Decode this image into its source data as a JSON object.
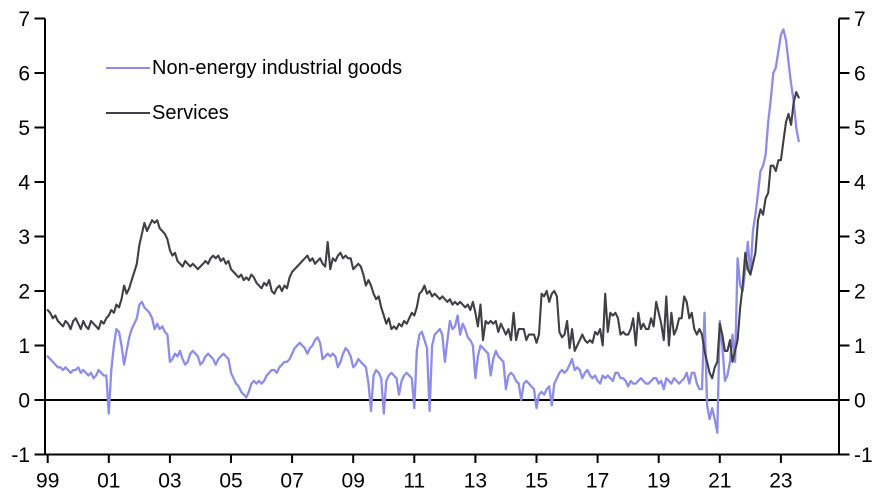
{
  "chart_data": {
    "type": "line",
    "title": "",
    "xlabel": "",
    "ylabel": "",
    "x_axis": {
      "start_year": 1999,
      "points_per_year": 12,
      "tick_years": [
        1999,
        2001,
        2003,
        2005,
        2007,
        2009,
        2011,
        2013,
        2015,
        2017,
        2019,
        2021,
        2023
      ],
      "tick_labels": [
        "99",
        "01",
        "03",
        "05",
        "07",
        "09",
        "11",
        "13",
        "15",
        "17",
        "19",
        "21",
        "23"
      ]
    },
    "y_axis": {
      "min": -1,
      "max": 7,
      "ticks": [
        -1,
        0,
        1,
        2,
        3,
        4,
        5,
        6,
        7
      ],
      "tick_labels": [
        "-1",
        "0",
        "1",
        "2",
        "3",
        "4",
        "5",
        "6",
        "7"
      ],
      "dual_axis": true,
      "zero_line": true,
      "grid": false
    },
    "legend_position": "top-left",
    "series": [
      {
        "name": "Non-energy industrial goods",
        "color": "#8d8de8",
        "values": [
          0.8,
          0.75,
          0.7,
          0.65,
          0.6,
          0.6,
          0.55,
          0.6,
          0.55,
          0.5,
          0.55,
          0.55,
          0.6,
          0.5,
          0.55,
          0.5,
          0.45,
          0.5,
          0.4,
          0.45,
          0.55,
          0.5,
          0.45,
          0.45,
          -0.25,
          0.55,
          1.0,
          1.3,
          1.25,
          1.0,
          0.65,
          0.9,
          1.15,
          1.3,
          1.4,
          1.5,
          1.75,
          1.8,
          1.7,
          1.65,
          1.6,
          1.5,
          1.3,
          1.4,
          1.3,
          1.35,
          1.25,
          1.2,
          0.7,
          0.75,
          0.85,
          0.8,
          0.9,
          0.75,
          0.65,
          0.7,
          0.85,
          0.9,
          0.85,
          0.8,
          0.65,
          0.7,
          0.8,
          0.85,
          0.8,
          0.75,
          0.65,
          0.75,
          0.8,
          0.85,
          0.8,
          0.75,
          0.5,
          0.4,
          0.3,
          0.25,
          0.15,
          0.1,
          0.05,
          0.15,
          0.3,
          0.35,
          0.3,
          0.35,
          0.3,
          0.35,
          0.45,
          0.5,
          0.55,
          0.55,
          0.5,
          0.6,
          0.65,
          0.7,
          0.7,
          0.75,
          0.85,
          0.95,
          1.0,
          1.05,
          1.0,
          0.95,
          0.85,
          0.95,
          1.0,
          1.1,
          1.15,
          1.05,
          0.75,
          0.8,
          0.85,
          0.8,
          0.85,
          0.8,
          0.6,
          0.7,
          0.85,
          0.95,
          0.9,
          0.8,
          0.6,
          0.65,
          0.75,
          0.7,
          0.65,
          0.6,
          0.3,
          -0.2,
          0.45,
          0.55,
          0.5,
          0.4,
          -0.25,
          0.35,
          0.45,
          0.5,
          0.45,
          0.4,
          0.1,
          0.35,
          0.45,
          0.5,
          0.45,
          0.4,
          -0.15,
          0.9,
          1.2,
          1.25,
          1.1,
          0.95,
          -0.2,
          1.0,
          1.2,
          1.25,
          1.3,
          1.2,
          0.7,
          1.1,
          1.45,
          1.3,
          1.35,
          1.55,
          1.2,
          1.4,
          1.3,
          1.15,
          1.1,
          1.0,
          0.4,
          0.8,
          1.0,
          0.95,
          0.9,
          0.85,
          0.45,
          0.75,
          0.9,
          0.8,
          0.75,
          0.7,
          0.2,
          0.45,
          0.5,
          0.45,
          0.35,
          0.3,
          0.0,
          0.3,
          0.35,
          0.3,
          0.25,
          0.2,
          -0.15,
          0.1,
          0.15,
          0.1,
          0.2,
          0.25,
          -0.1,
          0.3,
          0.4,
          0.5,
          0.55,
          0.5,
          0.55,
          0.65,
          0.75,
          0.55,
          0.6,
          0.55,
          0.4,
          0.5,
          0.55,
          0.45,
          0.4,
          0.45,
          0.35,
          0.3,
          0.45,
          0.4,
          0.45,
          0.4,
          0.35,
          0.5,
          0.5,
          0.4,
          0.4,
          0.35,
          0.25,
          0.35,
          0.3,
          0.3,
          0.35,
          0.4,
          0.35,
          0.3,
          0.3,
          0.35,
          0.4,
          0.4,
          0.3,
          0.35,
          0.2,
          0.4,
          0.35,
          0.3,
          0.4,
          0.35,
          0.3,
          0.35,
          0.4,
          0.5,
          0.3,
          0.5,
          0.5,
          0.3,
          0.2,
          0.2,
          1.6,
          -0.1,
          -0.35,
          -0.15,
          -0.35,
          -0.6,
          1.45,
          1.0,
          0.35,
          0.45,
          0.7,
          1.2,
          0.7,
          2.6,
          2.1,
          2.0,
          2.4,
          2.9,
          2.3,
          3.1,
          3.4,
          3.8,
          4.2,
          4.3,
          4.5,
          5.1,
          5.5,
          6.0,
          6.1,
          6.4,
          6.7,
          6.8,
          6.6,
          6.2,
          5.8,
          5.5,
          5.0,
          4.75
        ]
      },
      {
        "name": "Services",
        "color": "#3f3f45",
        "values": [
          1.65,
          1.6,
          1.5,
          1.55,
          1.45,
          1.4,
          1.35,
          1.45,
          1.4,
          1.3,
          1.45,
          1.5,
          1.4,
          1.3,
          1.45,
          1.35,
          1.3,
          1.45,
          1.4,
          1.35,
          1.3,
          1.45,
          1.4,
          1.5,
          1.55,
          1.65,
          1.6,
          1.75,
          1.7,
          1.85,
          2.1,
          1.95,
          2.05,
          2.2,
          2.35,
          2.5,
          2.85,
          3.05,
          3.25,
          3.1,
          3.2,
          3.3,
          3.25,
          3.3,
          3.15,
          3.1,
          3.05,
          2.95,
          2.75,
          2.65,
          2.7,
          2.55,
          2.5,
          2.45,
          2.55,
          2.5,
          2.45,
          2.5,
          2.45,
          2.4,
          2.45,
          2.5,
          2.55,
          2.5,
          2.6,
          2.65,
          2.6,
          2.65,
          2.55,
          2.6,
          2.5,
          2.55,
          2.4,
          2.35,
          2.3,
          2.25,
          2.3,
          2.2,
          2.25,
          2.2,
          2.3,
          2.25,
          2.15,
          2.1,
          2.05,
          2.15,
          2.1,
          2.2,
          2.0,
          1.95,
          2.05,
          2.1,
          2.0,
          2.1,
          2.05,
          2.25,
          2.35,
          2.4,
          2.45,
          2.5,
          2.55,
          2.6,
          2.65,
          2.55,
          2.6,
          2.5,
          2.55,
          2.6,
          2.5,
          2.45,
          2.9,
          2.4,
          2.6,
          2.55,
          2.65,
          2.7,
          2.6,
          2.65,
          2.6,
          2.6,
          2.4,
          2.45,
          2.5,
          2.45,
          2.3,
          2.1,
          2.2,
          2.1,
          1.95,
          1.85,
          1.9,
          1.7,
          1.55,
          1.4,
          1.5,
          1.3,
          1.35,
          1.3,
          1.4,
          1.35,
          1.45,
          1.4,
          1.5,
          1.6,
          1.55,
          1.7,
          1.95,
          2.0,
          2.1,
          1.95,
          2.0,
          1.9,
          1.95,
          1.9,
          1.85,
          1.9,
          1.85,
          1.8,
          1.85,
          1.75,
          1.8,
          1.75,
          1.8,
          1.75,
          1.7,
          1.75,
          1.65,
          1.8,
          1.6,
          1.35,
          1.75,
          1.1,
          1.45,
          1.4,
          1.45,
          1.4,
          1.45,
          1.25,
          1.4,
          1.3,
          1.2,
          1.3,
          1.1,
          1.6,
          1.1,
          1.3,
          1.3,
          1.3,
          1.1,
          1.2,
          1.2,
          1.2,
          1.05,
          1.2,
          1.95,
          1.9,
          2.0,
          1.8,
          1.95,
          2.0,
          1.9,
          1.25,
          1.15,
          1.2,
          1.45,
          0.95,
          1.3,
          0.9,
          1.0,
          1.1,
          1.2,
          1.1,
          1.05,
          1.1,
          1.05,
          1.25,
          1.2,
          1.3,
          1.0,
          1.95,
          1.25,
          1.6,
          1.55,
          1.6,
          1.5,
          1.2,
          1.25,
          1.2,
          1.2,
          1.3,
          1.5,
          1.0,
          1.6,
          1.3,
          1.4,
          1.3,
          1.3,
          1.5,
          1.35,
          1.8,
          1.6,
          1.4,
          1.1,
          1.9,
          1.0,
          1.6,
          1.2,
          1.3,
          1.5,
          1.5,
          1.9,
          1.8,
          1.5,
          1.6,
          1.3,
          1.2,
          1.3,
          1.2,
          0.9,
          0.7,
          0.5,
          0.4,
          0.6,
          0.7,
          1.4,
          1.2,
          0.9,
          0.9,
          1.1,
          0.7,
          0.9,
          1.1,
          1.7,
          2.1,
          2.7,
          2.4,
          2.3,
          2.5,
          2.7,
          3.3,
          3.5,
          3.4,
          3.7,
          3.8,
          4.3,
          4.3,
          4.2,
          4.4,
          4.4,
          4.75,
          5.1,
          5.25,
          5.05,
          5.45,
          5.65,
          5.55
        ]
      }
    ]
  }
}
